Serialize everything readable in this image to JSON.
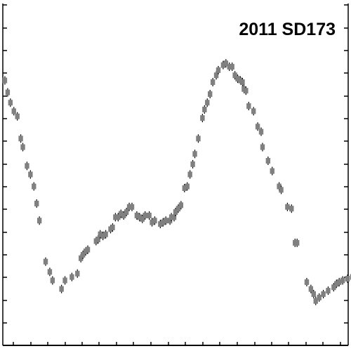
{
  "chart_data": {
    "type": "scatter",
    "title": "2011 SD173",
    "xlabel": "",
    "ylabel": "",
    "xlim": [
      0,
      1
    ],
    "ylim": [
      1,
      0
    ],
    "grid": false,
    "marker_color": "#808080",
    "errorbar_color": "#000000",
    "series": [
      {
        "x": [
          0.006,
          0.014,
          0.022,
          0.032,
          0.042,
          0.052,
          0.058,
          0.07,
          0.08,
          0.09,
          0.098,
          0.106,
          0.124,
          0.136,
          0.144,
          0.17,
          0.18,
          0.2,
          0.216,
          0.226,
          0.232,
          0.24,
          0.246,
          0.27,
          0.276,
          0.282,
          0.29,
          0.298,
          0.312,
          0.318,
          0.326,
          0.334,
          0.342,
          0.35,
          0.358,
          0.366,
          0.374,
          0.388,
          0.396,
          0.404,
          0.412,
          0.424,
          0.432,
          0.44,
          0.456,
          0.464,
          0.472,
          0.484,
          0.488,
          0.496,
          0.5,
          0.508,
          0.516,
          0.526,
          0.534,
          0.542,
          0.55,
          0.556,
          0.566,
          0.578,
          0.584,
          0.592,
          0.6,
          0.608,
          0.618,
          0.624,
          0.638,
          0.646,
          0.656,
          0.664,
          0.672,
          0.68,
          0.688,
          0.694,
          0.698,
          0.704,
          0.712,
          0.726,
          0.738,
          0.748,
          0.752,
          0.768,
          0.78,
          0.8,
          0.806,
          0.824,
          0.836,
          0.846,
          0.852,
          0.88,
          0.892,
          0.9,
          0.906,
          0.916,
          0.928,
          0.942,
          0.958,
          0.966,
          0.974,
          0.984,
          0.998,
          1.012
        ],
        "y": [
          0.225,
          0.26,
          0.29,
          0.315,
          0.33,
          0.395,
          0.42,
          0.475,
          0.5,
          0.535,
          0.585,
          0.635,
          0.755,
          0.785,
          0.81,
          0.835,
          0.81,
          0.8,
          0.79,
          0.745,
          0.735,
          0.725,
          0.72,
          0.695,
          0.69,
          0.675,
          0.68,
          0.675,
          0.66,
          0.655,
          0.625,
          0.625,
          0.615,
          0.62,
          0.61,
          0.595,
          0.595,
          0.62,
          0.625,
          0.63,
          0.62,
          0.62,
          0.64,
          0.635,
          0.645,
          0.64,
          0.635,
          0.635,
          0.625,
          0.625,
          0.61,
          0.6,
          0.59,
          0.54,
          0.535,
          0.5,
          0.47,
          0.44,
          0.395,
          0.335,
          0.31,
          0.29,
          0.265,
          0.23,
          0.21,
          0.195,
          0.18,
          0.175,
          0.185,
          0.185,
          0.21,
          0.22,
          0.225,
          0.23,
          0.25,
          0.255,
          0.3,
          0.315,
          0.36,
          0.375,
          0.42,
          0.46,
          0.49,
          0.535,
          0.545,
          0.595,
          0.6,
          0.7,
          0.7,
          0.815,
          0.835,
          0.85,
          0.87,
          0.86,
          0.85,
          0.84,
          0.83,
          0.82,
          0.815,
          0.81,
          0.805,
          0.8
        ]
      }
    ]
  }
}
